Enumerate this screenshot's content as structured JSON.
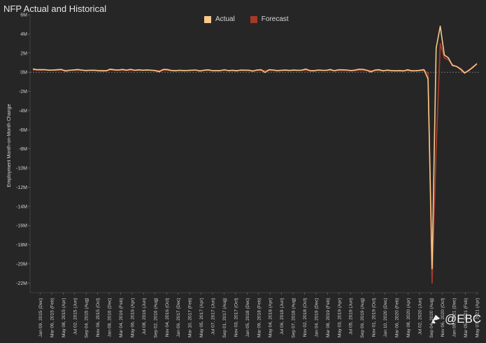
{
  "chart_data": {
    "type": "line",
    "title": "NFP Actual and Historical",
    "ylabel": "Employment Month-on-Month Change",
    "xlabel": "",
    "ylim": [
      -23,
      6
    ],
    "yticks": [
      6,
      4,
      2,
      0,
      -2,
      -4,
      -6,
      -8,
      -10,
      -12,
      -14,
      -16,
      -18,
      -20,
      -22
    ],
    "ytick_labels": [
      "6M",
      "4M",
      "2M",
      "0M",
      "-2M",
      "-4M",
      "-6M",
      "-8M",
      "-10M",
      "-12M",
      "-14M",
      "-16M",
      "-18M",
      "-20M",
      "-22M"
    ],
    "xtick_labels": [
      "Jan 09, 2015 (Dec)",
      "Mar 06, 2015 (Feb)",
      "May 08, 2015 (Apr)",
      "Jul 02, 2015 (Jun)",
      "Sep 04, 2015 (Aug)",
      "Nov 06, 2015 (Oct)",
      "Jan 08, 2016 (Dec)",
      "Mar 04, 2016 (Feb)",
      "May 06, 2016 (Apr)",
      "Jul 08, 2016 (Jun)",
      "Sep 02, 2016 (Aug)",
      "Nov 04, 2016 (Oct)",
      "Jan 06, 2017 (Dec)",
      "Mar 10, 2017 (Feb)",
      "May 05, 2017 (Apr)",
      "Jul 07, 2017 (Jun)",
      "Sep 01, 2017 (Aug)",
      "Nov 03, 2017 (Oct)",
      "Jan 05, 2018 (Dec)",
      "Mar 09, 2018 (Feb)",
      "May 04, 2018 (Apr)",
      "Jul 06, 2018 (Jun)",
      "Sep 07, 2018 (Aug)",
      "Nov 02, 2018 (Oct)",
      "Jan 04, 2019 (Dec)",
      "Mar 08, 2019 (Feb)",
      "May 03, 2019 (Apr)",
      "Jul 05, 2019 (Jun)",
      "Sep 06, 2019 (Aug)",
      "Nov 01, 2019 (Oct)",
      "Jan 10, 2020 (Dec)",
      "Mar 06, 2020 (Feb)",
      "May 08, 2020 (Apr)",
      "Jul 02, 2020 (Jun)",
      "Sep 04, 2020 (Aug)",
      "Nov 06, 2020 (Oct)",
      "Jan 08, 2021 (Dec)",
      "Mar 05, 2021 (Feb)",
      "May 07, 2021 (Apr)"
    ],
    "legend_position": "top-center",
    "grid": false,
    "zero_line": true,
    "series": [
      {
        "name": "Actual",
        "color": "#f7c98b",
        "values": [
          0.33,
          0.26,
          0.27,
          0.26,
          0.21,
          0.22,
          0.26,
          0.29,
          0.12,
          0.19,
          0.24,
          0.28,
          0.22,
          0.17,
          0.2,
          0.21,
          0.16,
          0.14,
          0.14,
          0.32,
          0.25,
          0.22,
          0.29,
          0.21,
          0.3,
          0.2,
          0.25,
          0.21,
          0.24,
          0.21,
          0.17,
          0.05,
          0.29,
          0.28,
          0.18,
          0.15,
          0.2,
          0.17,
          0.18,
          0.21,
          0.23,
          0.12,
          0.21,
          0.25,
          0.16,
          0.16,
          0.16,
          0.26,
          0.16,
          0.2,
          0.14,
          0.22,
          0.21,
          0.21,
          0.11,
          0.23,
          0.26,
          -0.03,
          0.26,
          0.23,
          0.16,
          0.2,
          0.22,
          0.18,
          0.22,
          0.2,
          0.21,
          0.33,
          0.16,
          0.14,
          0.23,
          0.2,
          0.19,
          0.28,
          0.15,
          0.25,
          0.25,
          0.23,
          0.17,
          0.21,
          0.31,
          0.3,
          0.2,
          0.03,
          0.22,
          0.26,
          0.14,
          0.22,
          0.16,
          0.14,
          0.16,
          0.13,
          0.25,
          0.14,
          0.15,
          0.2,
          0.27,
          -0.7,
          -20.5,
          2.5,
          4.8,
          1.8,
          1.5,
          0.7,
          0.6,
          0.3,
          -0.1,
          0.2,
          0.5,
          0.9
        ],
        "labels_shown": false
      },
      {
        "name": "Forecast",
        "color": "#a33a2a",
        "values": [
          0.24,
          0.23,
          0.22,
          0.24,
          0.23,
          0.21,
          0.21,
          0.23,
          0.2,
          0.22,
          0.21,
          0.2,
          0.2,
          0.19,
          0.2,
          0.2,
          0.18,
          0.18,
          0.17,
          0.23,
          0.21,
          0.2,
          0.21,
          0.19,
          0.21,
          0.19,
          0.2,
          0.19,
          0.2,
          0.19,
          0.18,
          0.16,
          0.2,
          0.19,
          0.18,
          0.17,
          0.18,
          0.17,
          0.18,
          0.19,
          0.19,
          0.17,
          0.18,
          0.19,
          0.17,
          0.17,
          0.17,
          0.19,
          0.18,
          0.18,
          0.17,
          0.18,
          0.18,
          0.18,
          0.16,
          0.18,
          0.19,
          0.17,
          0.19,
          0.18,
          0.17,
          0.18,
          0.18,
          0.18,
          0.18,
          0.18,
          0.19,
          0.2,
          0.18,
          0.17,
          0.18,
          0.18,
          0.18,
          0.19,
          0.17,
          0.18,
          0.18,
          0.18,
          0.17,
          0.18,
          0.19,
          0.19,
          0.18,
          0.16,
          0.17,
          0.18,
          0.17,
          0.17,
          0.17,
          0.16,
          0.17,
          0.16,
          0.17,
          0.16,
          0.16,
          0.17,
          0.18,
          -0.1,
          -22.0,
          -8.0,
          3.0,
          1.5,
          1.3,
          0.8,
          0.6,
          0.4,
          0.0,
          0.1,
          0.6,
          0.8
        ]
      }
    ]
  },
  "watermark": {
    "text": "@EBC",
    "icon": "ebc-logo-icon"
  }
}
